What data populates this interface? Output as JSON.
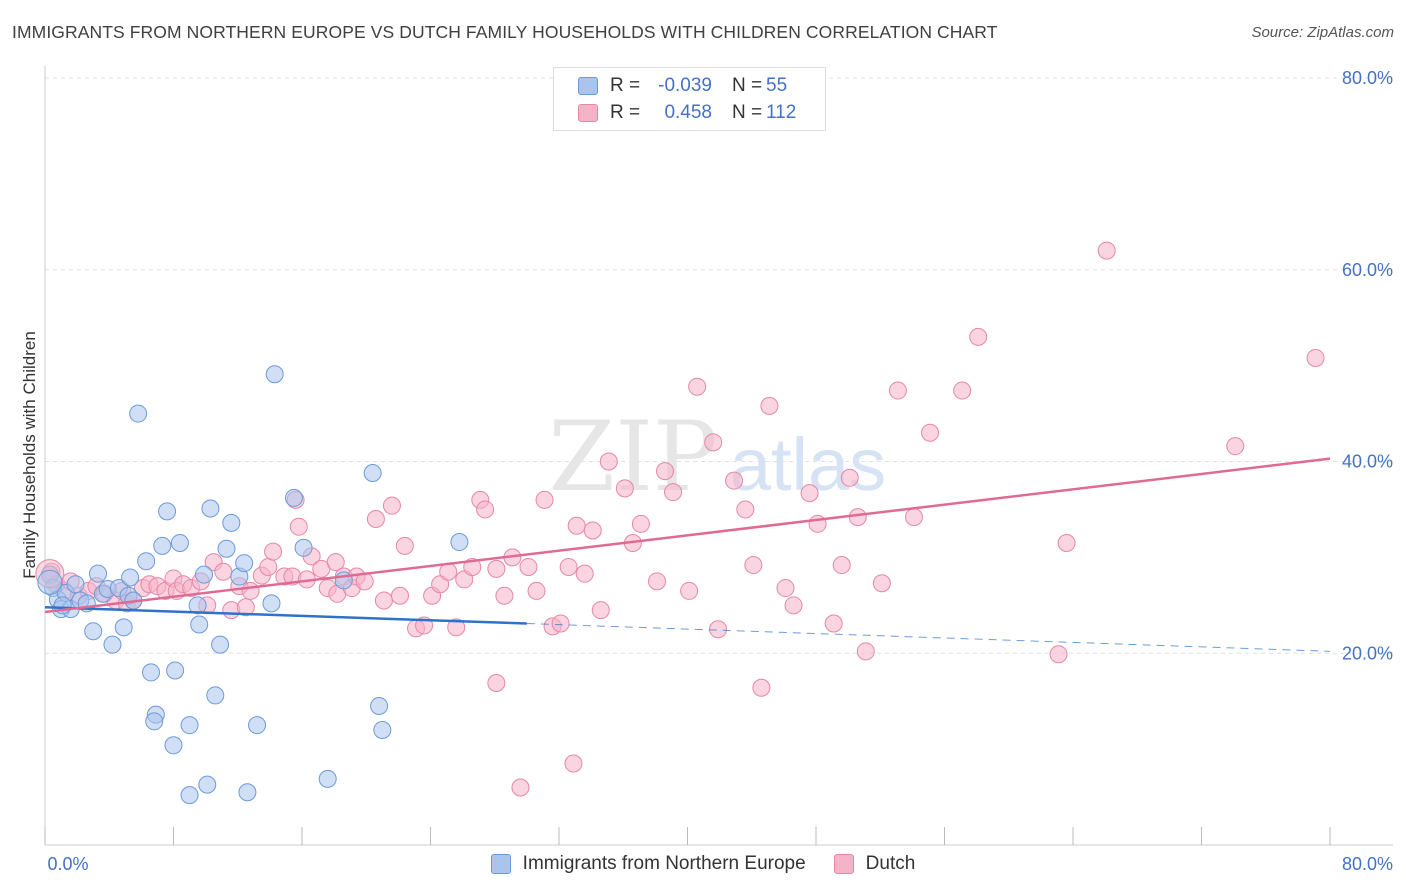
{
  "header": {
    "title": "IMMIGRANTS FROM NORTHERN EUROPE VS DUTCH FAMILY HOUSEHOLDS WITH CHILDREN CORRELATION CHART",
    "source": "Source: ZipAtlas.com"
  },
  "watermark": {
    "zip": "ZIP",
    "atlas": "atlas"
  },
  "legend_top": [
    {
      "r_label": "R =",
      "r_value": "-0.039",
      "n_label": "N =",
      "n_value": "55",
      "color": "#a9c5ee"
    },
    {
      "r_label": "R =",
      "r_value": "0.458",
      "n_label": "N =",
      "n_value": "112",
      "color": "#f5b3c8"
    }
  ],
  "legend_bottom": [
    {
      "label": "Immigrants from Northern Europe",
      "color": "#a9c5ee"
    },
    {
      "label": "Dutch",
      "color": "#f5b3c8"
    }
  ],
  "chart_data": {
    "type": "scatter",
    "ylabel": "Family Households with Children",
    "xlim": [
      0,
      80
    ],
    "ylim": [
      0,
      80
    ],
    "x_tick_labels": {
      "0": "0.0%",
      "80": "80.0%"
    },
    "y_tick_labels": [
      "20.0%",
      "40.0%",
      "60.0%",
      "80.0%"
    ],
    "y_ticks": [
      20,
      40,
      60,
      80
    ],
    "grid": "horizontal dashed",
    "series": [
      {
        "name": "Immigrants from Northern Europe",
        "color": "#a9c5ee",
        "stroke": "#6c9ad8",
        "line_color": "#2f72c9",
        "trend": {
          "x0": 0,
          "y0": 24.8,
          "x1": 30,
          "y1": 23.1,
          "dash_to_x": 80,
          "dash_y": 20.2
        },
        "points": [
          [
            0.3,
            28.2
          ],
          [
            0.5,
            26.8
          ],
          [
            0.8,
            25.6
          ],
          [
            1.0,
            24.6
          ],
          [
            1.3,
            26.3
          ],
          [
            1.6,
            24.6
          ],
          [
            1.9,
            27.2
          ],
          [
            2.2,
            25.5
          ],
          [
            2.6,
            25.2
          ],
          [
            3.0,
            22.3
          ],
          [
            3.3,
            28.3
          ],
          [
            3.6,
            26.2
          ],
          [
            3.9,
            26.7
          ],
          [
            4.2,
            20.9
          ],
          [
            4.6,
            26.8
          ],
          [
            4.9,
            22.7
          ],
          [
            5.2,
            26.0
          ],
          [
            5.5,
            25.5
          ],
          [
            5.3,
            27.9
          ],
          [
            5.8,
            45.0
          ],
          [
            6.3,
            29.6
          ],
          [
            6.6,
            18.0
          ],
          [
            6.9,
            13.6
          ],
          [
            7.3,
            31.2
          ],
          [
            7.6,
            34.8
          ],
          [
            8.1,
            18.2
          ],
          [
            8.4,
            31.5
          ],
          [
            9.0,
            12.5
          ],
          [
            9.5,
            25.0
          ],
          [
            9.6,
            23.0
          ],
          [
            9.9,
            28.2
          ],
          [
            10.3,
            35.1
          ],
          [
            10.6,
            15.6
          ],
          [
            10.9,
            20.9
          ],
          [
            11.3,
            30.9
          ],
          [
            11.6,
            33.6
          ],
          [
            12.1,
            28.0
          ],
          [
            12.4,
            29.4
          ],
          [
            13.2,
            12.5
          ],
          [
            14.1,
            25.2
          ],
          [
            14.3,
            49.1
          ],
          [
            15.5,
            36.2
          ],
          [
            16.1,
            31.0
          ],
          [
            17.6,
            6.9
          ],
          [
            18.6,
            27.6
          ],
          [
            20.4,
            38.8
          ],
          [
            20.8,
            14.5
          ],
          [
            21.0,
            12.0
          ],
          [
            25.8,
            31.6
          ],
          [
            6.8,
            12.9
          ],
          [
            8.0,
            10.4
          ],
          [
            9.0,
            5.2
          ],
          [
            10.1,
            6.3
          ],
          [
            12.6,
            5.5
          ],
          [
            1.1,
            25.0
          ]
        ]
      },
      {
        "name": "Dutch",
        "color": "#f5b3c8",
        "stroke": "#e687a6",
        "line_color": "#e06b92",
        "trend": {
          "x0": 0,
          "y0": 24.3,
          "x1": 80,
          "y1": 40.3
        },
        "points": [
          [
            0.4,
            28.5
          ],
          [
            0.7,
            27.2
          ],
          [
            1.2,
            26.5
          ],
          [
            1.6,
            27.5
          ],
          [
            2.1,
            26.0
          ],
          [
            2.7,
            26.5
          ],
          [
            3.2,
            27.0
          ],
          [
            3.7,
            26.2
          ],
          [
            4.4,
            25.5
          ],
          [
            4.8,
            26.5
          ],
          [
            5.1,
            25.2
          ],
          [
            5.5,
            25.5
          ],
          [
            6.1,
            26.8
          ],
          [
            6.5,
            27.2
          ],
          [
            7.0,
            27.0
          ],
          [
            7.5,
            26.5
          ],
          [
            8.0,
            27.8
          ],
          [
            8.2,
            26.5
          ],
          [
            8.6,
            27.2
          ],
          [
            9.1,
            26.8
          ],
          [
            9.7,
            27.5
          ],
          [
            10.1,
            25.0
          ],
          [
            10.5,
            29.5
          ],
          [
            11.1,
            28.5
          ],
          [
            11.6,
            24.5
          ],
          [
            12.1,
            27.0
          ],
          [
            12.5,
            24.8
          ],
          [
            12.8,
            26.5
          ],
          [
            13.5,
            28.1
          ],
          [
            13.9,
            29.0
          ],
          [
            14.2,
            30.6
          ],
          [
            14.9,
            28.0
          ],
          [
            15.4,
            28.0
          ],
          [
            15.6,
            36.0
          ],
          [
            15.8,
            33.2
          ],
          [
            16.3,
            27.7
          ],
          [
            16.6,
            30.1
          ],
          [
            17.2,
            28.8
          ],
          [
            17.6,
            26.8
          ],
          [
            18.1,
            29.5
          ],
          [
            18.2,
            26.2
          ],
          [
            18.6,
            28.0
          ],
          [
            19.1,
            26.8
          ],
          [
            19.4,
            28.0
          ],
          [
            19.9,
            27.5
          ],
          [
            20.6,
            34.0
          ],
          [
            21.1,
            25.5
          ],
          [
            21.6,
            35.4
          ],
          [
            22.1,
            26.0
          ],
          [
            22.4,
            31.2
          ],
          [
            23.1,
            22.6
          ],
          [
            23.6,
            22.9
          ],
          [
            24.1,
            26.0
          ],
          [
            24.6,
            27.2
          ],
          [
            25.1,
            28.5
          ],
          [
            25.6,
            22.7
          ],
          [
            26.1,
            27.7
          ],
          [
            26.6,
            29.0
          ],
          [
            27.1,
            36.0
          ],
          [
            27.4,
            35.0
          ],
          [
            28.1,
            28.8
          ],
          [
            28.6,
            26.0
          ],
          [
            29.1,
            30.0
          ],
          [
            30.1,
            29.0
          ],
          [
            30.6,
            26.5
          ],
          [
            31.1,
            36.0
          ],
          [
            31.6,
            22.8
          ],
          [
            32.1,
            23.1
          ],
          [
            32.6,
            29.0
          ],
          [
            33.1,
            33.3
          ],
          [
            33.6,
            28.3
          ],
          [
            34.1,
            32.8
          ],
          [
            34.6,
            24.5
          ],
          [
            35.1,
            40.0
          ],
          [
            36.1,
            37.2
          ],
          [
            36.6,
            31.5
          ],
          [
            37.1,
            33.5
          ],
          [
            38.1,
            27.5
          ],
          [
            38.6,
            39.0
          ],
          [
            39.1,
            36.8
          ],
          [
            40.1,
            26.5
          ],
          [
            40.6,
            47.8
          ],
          [
            41.6,
            42.0
          ],
          [
            41.9,
            22.5
          ],
          [
            42.9,
            38.0
          ],
          [
            43.6,
            35.0
          ],
          [
            44.1,
            29.2
          ],
          [
            44.6,
            16.4
          ],
          [
            45.1,
            45.8
          ],
          [
            46.1,
            26.8
          ],
          [
            46.6,
            25.0
          ],
          [
            47.6,
            36.7
          ],
          [
            48.1,
            33.5
          ],
          [
            49.1,
            23.1
          ],
          [
            49.6,
            29.2
          ],
          [
            50.1,
            38.3
          ],
          [
            50.6,
            34.2
          ],
          [
            51.1,
            20.2
          ],
          [
            52.1,
            27.3
          ],
          [
            53.1,
            47.4
          ],
          [
            54.1,
            34.2
          ],
          [
            55.1,
            43.0
          ],
          [
            57.1,
            47.4
          ],
          [
            58.1,
            53.0
          ],
          [
            63.1,
            19.9
          ],
          [
            63.6,
            31.5
          ],
          [
            66.1,
            62.0
          ],
          [
            74.1,
            41.6
          ],
          [
            79.1,
            50.8
          ],
          [
            29.6,
            6.0
          ],
          [
            32.9,
            8.5
          ],
          [
            28.1,
            16.9
          ]
        ]
      }
    ]
  }
}
